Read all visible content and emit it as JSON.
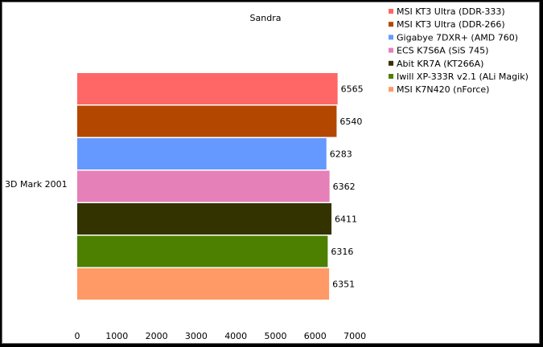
{
  "chart_data": {
    "type": "bar",
    "orientation": "horizontal",
    "title": "Sandra",
    "categories": [
      "3D Mark 2001"
    ],
    "xlim": [
      0,
      7000
    ],
    "x_ticks": [
      0,
      1000,
      2000,
      3000,
      4000,
      5000,
      6000,
      7000
    ],
    "grid": false,
    "legend_position": "top-right",
    "series": [
      {
        "name": "MSI KT3 Ultra (DDR-333)",
        "color": "#ff6666",
        "values": [
          6565
        ]
      },
      {
        "name": "MSI KT3 Ultra (DDR-266)",
        "color": "#b34700",
        "values": [
          6540
        ]
      },
      {
        "name": "Gigabye 7DXR+ (AMD 760)",
        "color": "#6699ff",
        "values": [
          6283
        ]
      },
      {
        "name": "ECS K7S6A (SiS 745)",
        "color": "#e680b8",
        "values": [
          6362
        ]
      },
      {
        "name": "Abit KR7A (KT266A)",
        "color": "#333300",
        "values": [
          6411
        ]
      },
      {
        "name": "Iwill XP-333R v2.1 (ALi Magik)",
        "color": "#4d8000",
        "values": [
          6316
        ]
      },
      {
        "name": "MSI K7N420 (nForce)",
        "color": "#ff9966",
        "values": [
          6351
        ]
      }
    ]
  }
}
